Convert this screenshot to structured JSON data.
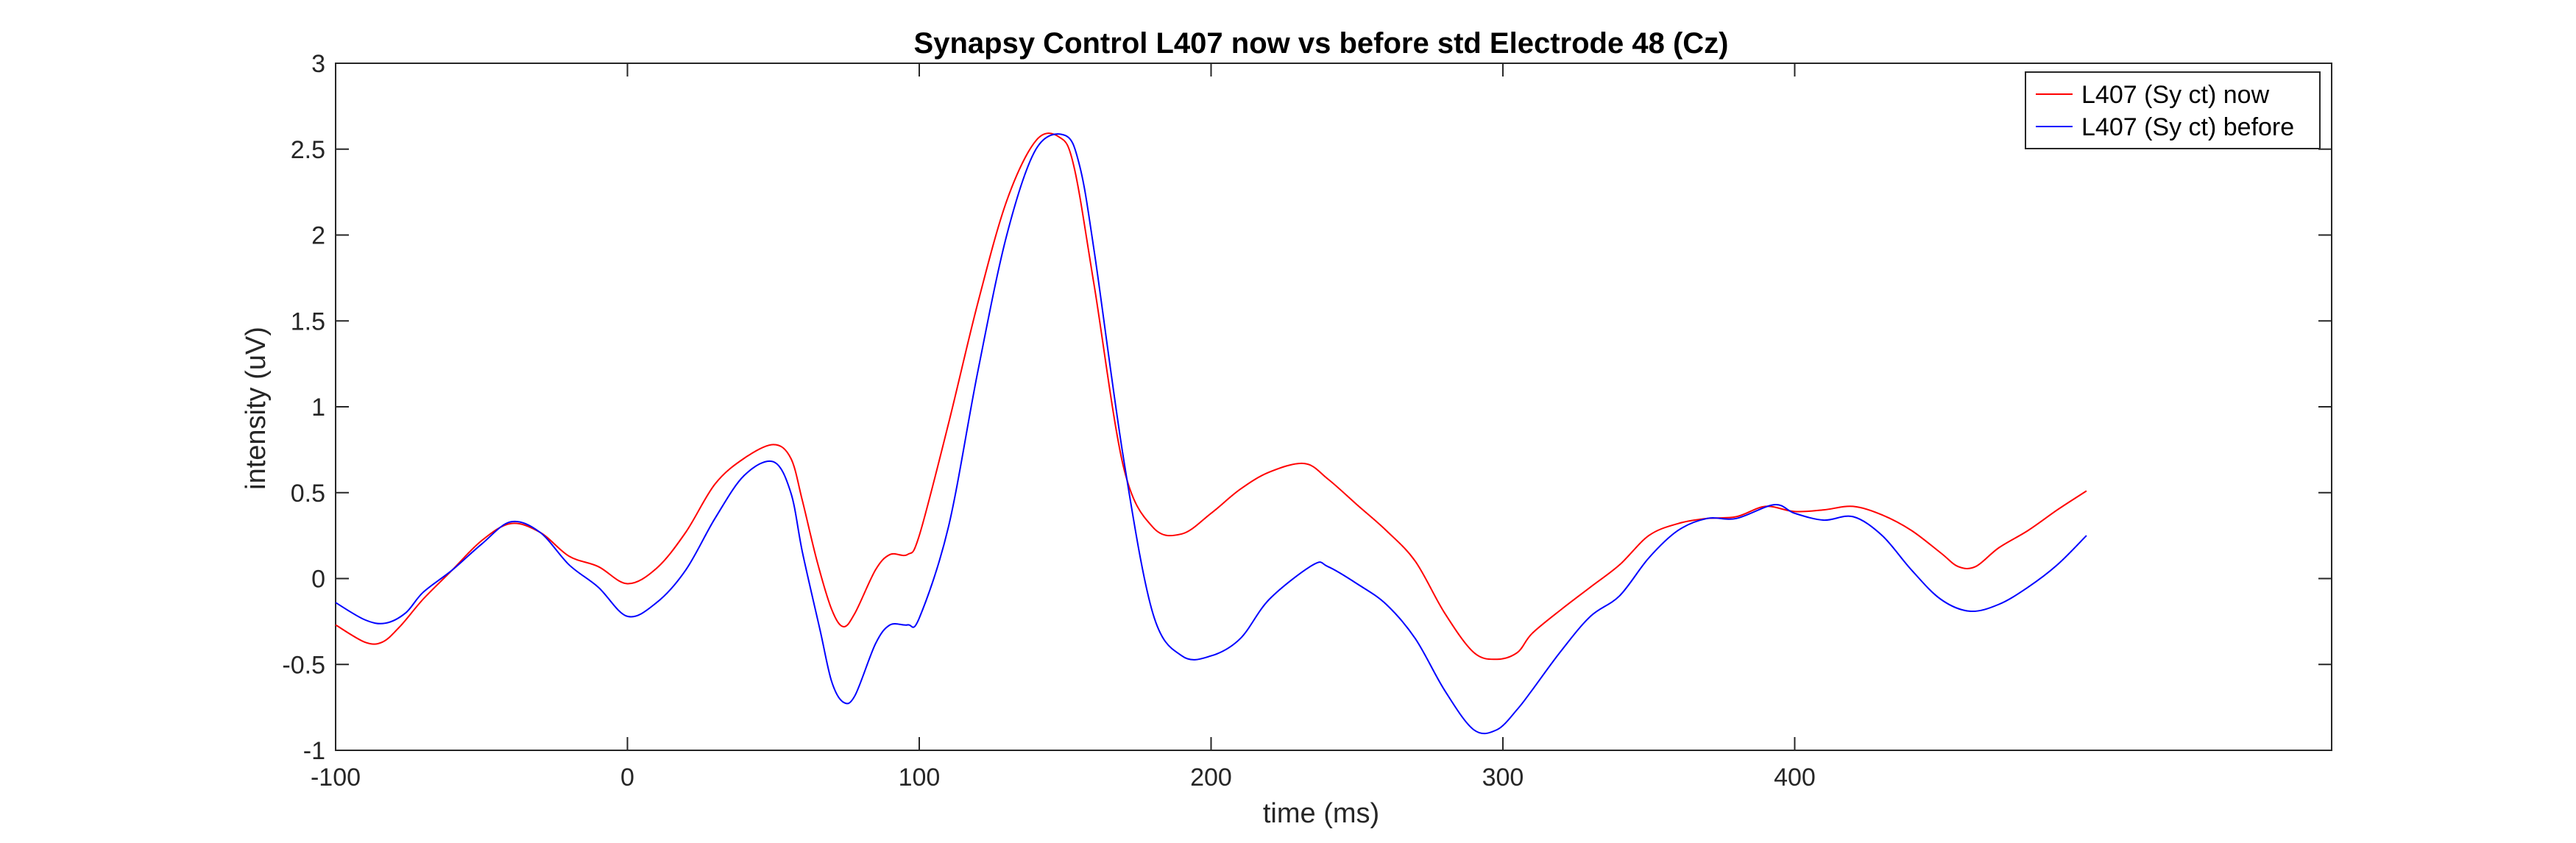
{
  "chart_data": {
    "type": "line",
    "title": "Synapsy Control L407 now vs before std Electrode 48 (Cz)",
    "xlabel": "time (ms)",
    "ylabel": "intensity (uV)",
    "xlim": [
      -100,
      584
    ],
    "ylim": [
      -1,
      3
    ],
    "xticks": [
      -100,
      0,
      100,
      200,
      300,
      400
    ],
    "xtick_labels": [
      "-100",
      "0",
      "100",
      "200",
      "300",
      "400"
    ],
    "yticks": [
      -1,
      -0.5,
      0,
      0.5,
      1,
      1.5,
      2,
      2.5,
      3
    ],
    "ytick_labels": [
      "-1",
      "-0.5",
      "0",
      "0.5",
      "1",
      "1.5",
      "2",
      "2.5",
      "3"
    ],
    "grid": false,
    "legend_position": "top-right",
    "series": [
      {
        "name": "L407 (Sy ct) now",
        "color": "#ff0000",
        "x": [
          -100,
          -90,
          -84,
          -78,
          -70,
          -60,
          -50,
          -40,
          -30,
          -20,
          -10,
          0,
          10,
          20,
          30,
          40,
          50,
          56,
          60,
          65,
          70,
          74,
          78,
          85,
          90,
          96,
          100,
          110,
          120,
          130,
          140,
          148,
          153,
          160,
          170,
          180,
          190,
          200,
          210,
          220,
          232,
          240,
          250,
          260,
          270,
          280,
          290,
          298,
          305,
          310,
          320,
          330,
          340,
          350,
          360,
          370,
          380,
          390,
          400,
          410,
          420,
          430,
          440,
          450,
          456,
          462,
          470,
          480,
          490,
          500
        ],
        "y": [
          -0.27,
          -0.37,
          -0.37,
          -0.28,
          -0.12,
          0.05,
          0.22,
          0.32,
          0.27,
          0.13,
          0.07,
          -0.03,
          0.06,
          0.27,
          0.55,
          0.7,
          0.78,
          0.7,
          0.45,
          0.1,
          -0.18,
          -0.28,
          -0.2,
          0.05,
          0.14,
          0.14,
          0.25,
          0.9,
          1.6,
          2.2,
          2.55,
          2.57,
          2.4,
          1.7,
          0.65,
          0.3,
          0.26,
          0.38,
          0.52,
          0.62,
          0.67,
          0.58,
          0.43,
          0.28,
          0.1,
          -0.2,
          -0.43,
          -0.47,
          -0.43,
          -0.32,
          -0.18,
          -0.05,
          0.08,
          0.25,
          0.32,
          0.35,
          0.36,
          0.42,
          0.39,
          0.4,
          0.42,
          0.37,
          0.28,
          0.15,
          0.07,
          0.07,
          0.18,
          0.28,
          0.4,
          0.51
        ]
      },
      {
        "name": "L407 (Sy ct) before",
        "color": "#0000ff",
        "x": [
          -100,
          -90,
          -83,
          -76,
          -70,
          -60,
          -50,
          -40,
          -30,
          -20,
          -10,
          0,
          10,
          20,
          30,
          40,
          50,
          56,
          60,
          66,
          70,
          74,
          78,
          85,
          90,
          96,
          100,
          110,
          120,
          130,
          140,
          150,
          155,
          160,
          170,
          180,
          190,
          200,
          210,
          220,
          235,
          240,
          250,
          260,
          270,
          280,
          290,
          298,
          305,
          310,
          320,
          330,
          340,
          350,
          360,
          370,
          380,
          393,
          400,
          410,
          420,
          430,
          440,
          450,
          460,
          470,
          480,
          490,
          500
        ],
        "y": [
          -0.14,
          -0.24,
          -0.26,
          -0.2,
          -0.08,
          0.05,
          0.2,
          0.33,
          0.27,
          0.08,
          -0.05,
          -0.22,
          -0.14,
          0.05,
          0.35,
          0.6,
          0.68,
          0.5,
          0.15,
          -0.3,
          -0.6,
          -0.72,
          -0.68,
          -0.38,
          -0.27,
          -0.27,
          -0.23,
          0.3,
          1.2,
          2.0,
          2.5,
          2.58,
          2.4,
          1.9,
          0.7,
          -0.2,
          -0.45,
          -0.45,
          -0.35,
          -0.12,
          0.08,
          0.07,
          -0.03,
          -0.15,
          -0.35,
          -0.65,
          -0.88,
          -0.88,
          -0.76,
          -0.65,
          -0.42,
          -0.22,
          -0.1,
          0.12,
          0.28,
          0.35,
          0.35,
          0.43,
          0.38,
          0.34,
          0.36,
          0.25,
          0.05,
          -0.12,
          -0.19,
          -0.15,
          -0.05,
          0.08,
          0.25
        ]
      }
    ]
  }
}
